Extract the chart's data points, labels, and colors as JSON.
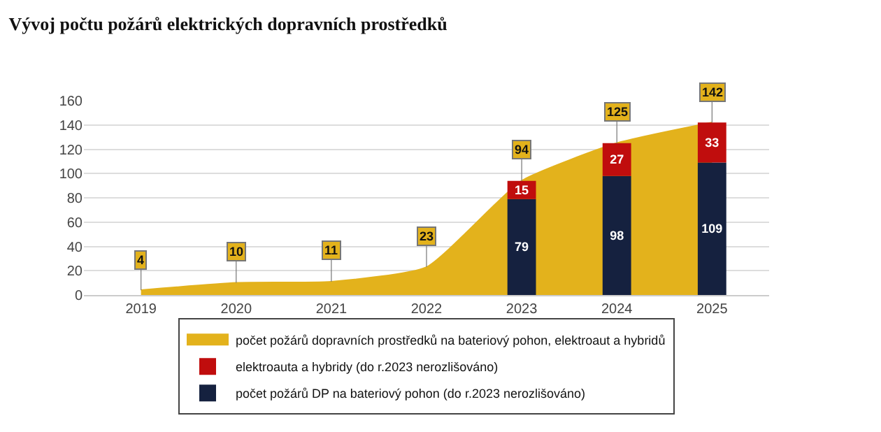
{
  "chart_data": {
    "type": "bar",
    "title": "Vývoj počtu požárů elektrických dopravních prostředků",
    "categories": [
      "2019",
      "2020",
      "2021",
      "2022",
      "2023",
      "2024",
      "2025"
    ],
    "series": [
      {
        "name": "počet požárů dopravních prostředků na bateriový pohon, elektroaut a hybridů",
        "type": "area",
        "color": "#e3b21c",
        "values": [
          4,
          10,
          11,
          23,
          94,
          125,
          142
        ]
      },
      {
        "name": "počet požárů DP na bateriový pohon (do r.2023 nerozlišováno)",
        "color": "#15213f",
        "values": [
          null,
          null,
          null,
          null,
          79,
          98,
          109
        ]
      },
      {
        "name": "elektroauta a hybridy (do r.2023 nerozlišováno)",
        "color": "#c00d0d",
        "values": [
          null,
          null,
          null,
          null,
          15,
          27,
          33
        ],
        "base": [
          null,
          null,
          null,
          null,
          79,
          98,
          109
        ]
      }
    ],
    "data_labels": true,
    "ylim": [
      0,
      160
    ],
    "yticks": [
      0,
      20,
      40,
      60,
      80,
      100,
      120,
      140,
      160
    ],
    "grid": "y",
    "legend": "bottom"
  }
}
